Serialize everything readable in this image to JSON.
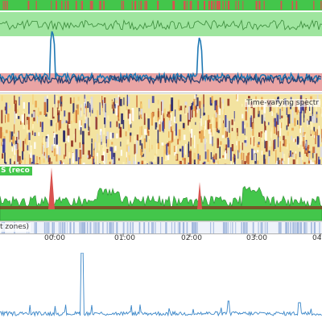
{
  "panels": {
    "spectrogram": {
      "label": "Time-varying spectr"
    },
    "reco": {
      "label": "S (reco"
    },
    "zones": {
      "label": "t zones)"
    }
  },
  "time_axis": {
    "ticks": [
      "00:00",
      "01:00",
      "02:00",
      "03:00",
      "04:0"
    ]
  },
  "colors": {
    "green_band": "#8ee08e",
    "green_line": "#3a8a3a",
    "red_band": "#e89a9a",
    "dark_line": "#2f3f6e",
    "blue_line": "#1f78b4",
    "event_bar": "#43c64b",
    "event_marker": "#d9534f",
    "reco_fill": "#43c64b",
    "reco_spike": "#d9534f",
    "bottom_line": "#3a86c8"
  }
}
